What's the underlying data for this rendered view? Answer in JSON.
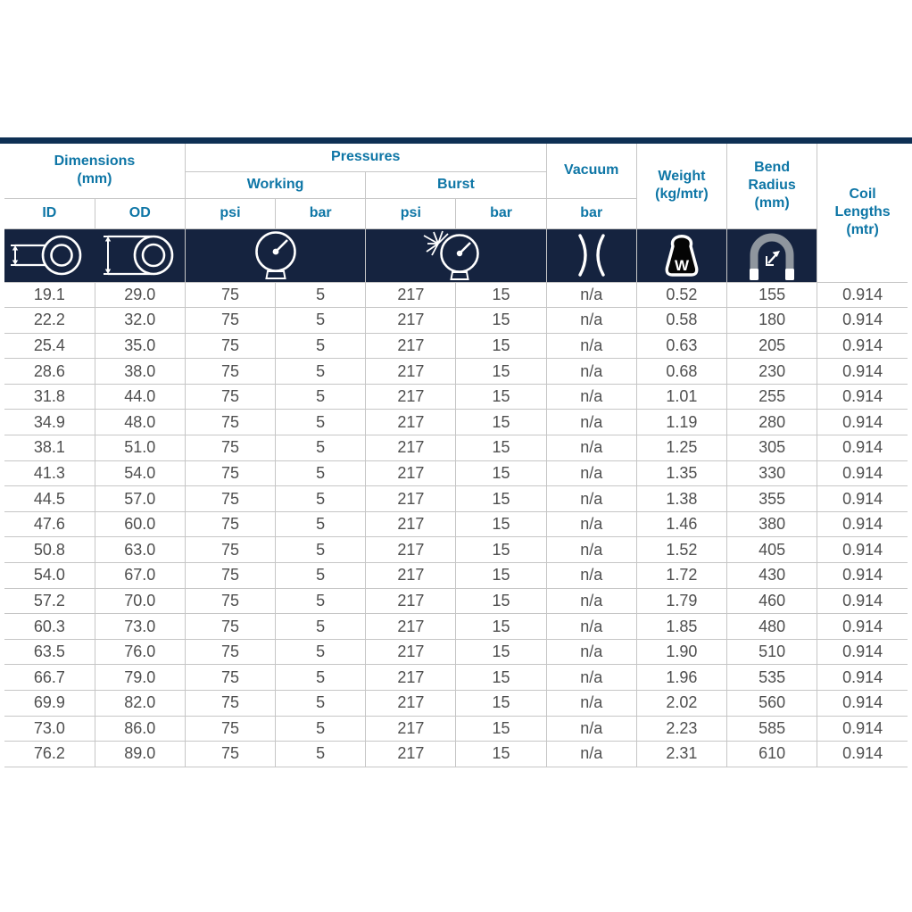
{
  "page": {
    "colors": {
      "accent_bar": "#0e3054",
      "icon_row_bg": "#15233f",
      "header_text": "#0e76a6",
      "body_text": "#4f4f4f",
      "grid_line": "#c6c6c6",
      "bend_icon_gray": "#8f969e"
    }
  },
  "table": {
    "header": {
      "dimensions": "Dimensions\n(mm)",
      "pressures": "Pressures",
      "working": "Working",
      "burst": "Burst",
      "vacuum": "Vacuum",
      "weight": "Weight\n(kg/mtr)",
      "bend_radius": "Bend\nRadius\n(mm)",
      "coil_lengths": "Coil\nLengths\n(mtr)",
      "id": "ID",
      "od": "OD",
      "working_psi": "psi",
      "working_bar": "bar",
      "burst_psi": "psi",
      "burst_bar": "bar",
      "vacuum_bar": "bar"
    },
    "icons": {
      "id": "hose-id-icon",
      "od": "hose-od-icon",
      "working": "pressure-gauge-icon",
      "burst": "burst-pressure-gauge-icon",
      "vacuum": "vacuum-icon",
      "weight": "weight-icon",
      "bend_radius": "bend-radius-icon"
    },
    "columns": [
      "id",
      "od",
      "working-psi",
      "working-bar",
      "burst-psi",
      "burst-bar",
      "vacuum-bar",
      "weight",
      "bend-radius",
      "coil-length"
    ],
    "rows": [
      [
        "19.1",
        "29.0",
        "75",
        "5",
        "217",
        "15",
        "n/a",
        "0.52",
        "155",
        "0.914"
      ],
      [
        "22.2",
        "32.0",
        "75",
        "5",
        "217",
        "15",
        "n/a",
        "0.58",
        "180",
        "0.914"
      ],
      [
        "25.4",
        "35.0",
        "75",
        "5",
        "217",
        "15",
        "n/a",
        "0.63",
        "205",
        "0.914"
      ],
      [
        "28.6",
        "38.0",
        "75",
        "5",
        "217",
        "15",
        "n/a",
        "0.68",
        "230",
        "0.914"
      ],
      [
        "31.8",
        "44.0",
        "75",
        "5",
        "217",
        "15",
        "n/a",
        "1.01",
        "255",
        "0.914"
      ],
      [
        "34.9",
        "48.0",
        "75",
        "5",
        "217",
        "15",
        "n/a",
        "1.19",
        "280",
        "0.914"
      ],
      [
        "38.1",
        "51.0",
        "75",
        "5",
        "217",
        "15",
        "n/a",
        "1.25",
        "305",
        "0.914"
      ],
      [
        "41.3",
        "54.0",
        "75",
        "5",
        "217",
        "15",
        "n/a",
        "1.35",
        "330",
        "0.914"
      ],
      [
        "44.5",
        "57.0",
        "75",
        "5",
        "217",
        "15",
        "n/a",
        "1.38",
        "355",
        "0.914"
      ],
      [
        "47.6",
        "60.0",
        "75",
        "5",
        "217",
        "15",
        "n/a",
        "1.46",
        "380",
        "0.914"
      ],
      [
        "50.8",
        "63.0",
        "75",
        "5",
        "217",
        "15",
        "n/a",
        "1.52",
        "405",
        "0.914"
      ],
      [
        "54.0",
        "67.0",
        "75",
        "5",
        "217",
        "15",
        "n/a",
        "1.72",
        "430",
        "0.914"
      ],
      [
        "57.2",
        "70.0",
        "75",
        "5",
        "217",
        "15",
        "n/a",
        "1.79",
        "460",
        "0.914"
      ],
      [
        "60.3",
        "73.0",
        "75",
        "5",
        "217",
        "15",
        "n/a",
        "1.85",
        "480",
        "0.914"
      ],
      [
        "63.5",
        "76.0",
        "75",
        "5",
        "217",
        "15",
        "n/a",
        "1.90",
        "510",
        "0.914"
      ],
      [
        "66.7",
        "79.0",
        "75",
        "5",
        "217",
        "15",
        "n/a",
        "1.96",
        "535",
        "0.914"
      ],
      [
        "69.9",
        "82.0",
        "75",
        "5",
        "217",
        "15",
        "n/a",
        "2.02",
        "560",
        "0.914"
      ],
      [
        "73.0",
        "86.0",
        "75",
        "5",
        "217",
        "15",
        "n/a",
        "2.23",
        "585",
        "0.914"
      ],
      [
        "76.2",
        "89.0",
        "75",
        "5",
        "217",
        "15",
        "n/a",
        "2.31",
        "610",
        "0.914"
      ]
    ]
  }
}
